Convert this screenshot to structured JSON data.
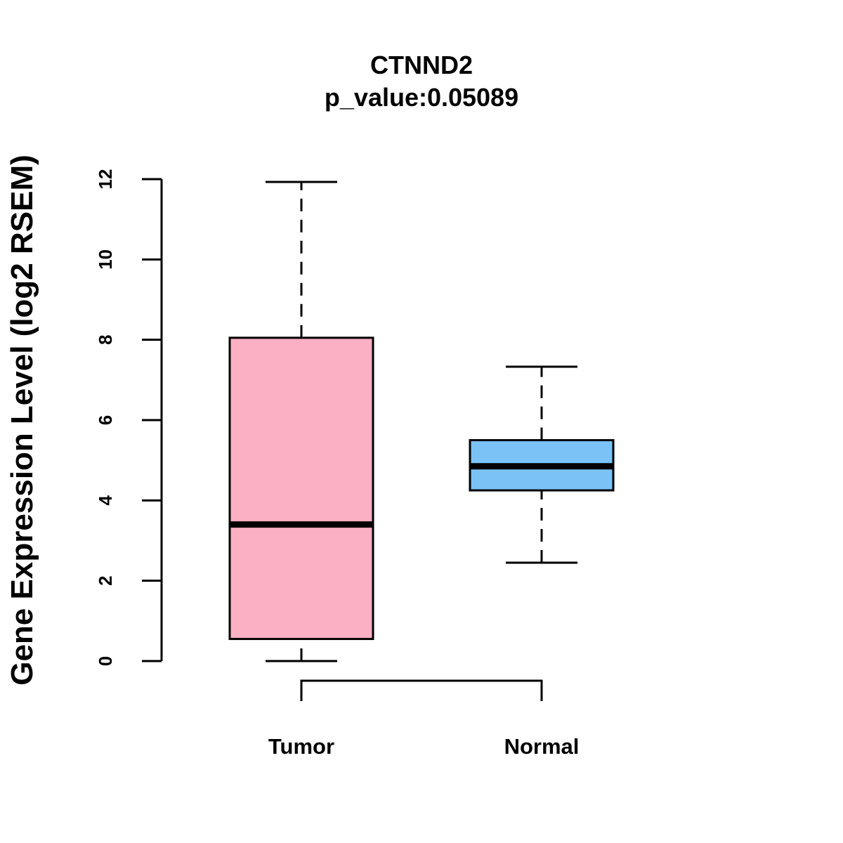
{
  "chart_data": {
    "type": "boxplot",
    "title": "CTNND2",
    "subtitle": "p_value:0.05089",
    "xlabel": "",
    "ylabel": "Gene Expression Level (log2 RSEM)",
    "ylim": [
      0,
      12
    ],
    "yticks": [
      "0",
      "2",
      "4",
      "6",
      "8",
      "10",
      "12"
    ],
    "grid": false,
    "categories": [
      "Tumor",
      "Normal"
    ],
    "series": [
      {
        "name": "Tumor",
        "min": 0,
        "q1": 0.55,
        "median": 3.4,
        "q3": 8.05,
        "max": 11.93,
        "color": "#FBB0C3"
      },
      {
        "name": "Normal",
        "min": 2.45,
        "q1": 4.25,
        "median": 4.85,
        "q3": 5.5,
        "max": 7.33,
        "color": "#7BC3F7"
      }
    ],
    "comparison_bracket": [
      "Tumor",
      "Normal"
    ]
  }
}
